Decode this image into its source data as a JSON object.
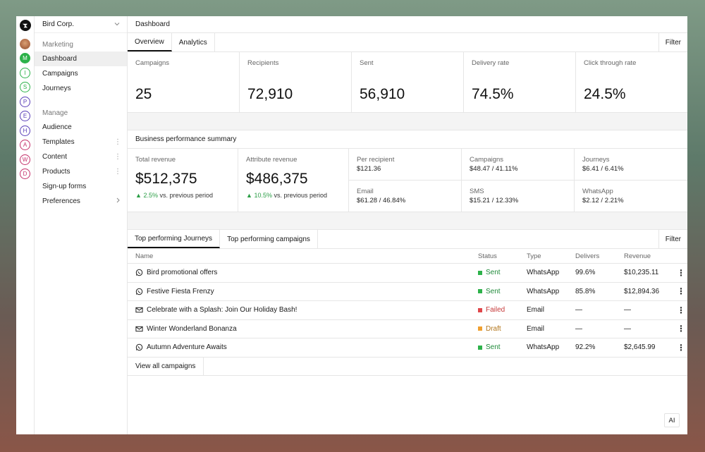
{
  "org": {
    "name": "Bird Corp."
  },
  "rail": {
    "workspaces": [
      {
        "letter": "",
        "kind": "photo",
        "color": "#b87550"
      },
      {
        "letter": "M",
        "kind": "filled",
        "color": "#2db24a"
      },
      {
        "letter": "I",
        "kind": "outline",
        "color": "#2db24a"
      },
      {
        "letter": "S",
        "kind": "outline",
        "color": "#2db24a"
      },
      {
        "letter": "P",
        "kind": "outline",
        "color": "#5a3fb8"
      },
      {
        "letter": "E",
        "kind": "outline",
        "color": "#5a3fb8"
      },
      {
        "letter": "H",
        "kind": "outline",
        "color": "#5a3fb8"
      },
      {
        "letter": "A",
        "kind": "outline",
        "color": "#c4306a"
      },
      {
        "letter": "W",
        "kind": "outline",
        "color": "#c4306a"
      },
      {
        "letter": "D",
        "kind": "outline",
        "color": "#c4306a"
      }
    ]
  },
  "sidebar": {
    "marketing_label": "Marketing",
    "marketing_items": [
      "Dashboard",
      "Campaigns",
      "Journeys"
    ],
    "manage_label": "Manage",
    "manage_items": [
      "Audience",
      "Templates",
      "Content",
      "Products",
      "Sign-up forms",
      "Preferences"
    ]
  },
  "header": {
    "title": "Dashboard"
  },
  "tabs": {
    "overview": "Overview",
    "analytics": "Analytics",
    "filter": "Filter"
  },
  "stats": [
    {
      "label": "Campaigns",
      "value": "25"
    },
    {
      "label": "Recipients",
      "value": "72,910"
    },
    {
      "label": "Sent",
      "value": "56,910"
    },
    {
      "label": "Delivery rate",
      "value": "74.5%"
    },
    {
      "label": "Click through rate",
      "value": "24.5%"
    }
  ],
  "performance": {
    "title": "Business performance summary",
    "total_revenue": {
      "label": "Total revenue",
      "value": "$512,375",
      "delta": "2.5%",
      "suffix": "vs. previous period"
    },
    "attribute_revenue": {
      "label": "Attribute revenue",
      "value": "$486,375",
      "delta": "10.5%",
      "suffix": "vs. previous period"
    },
    "breakdown": [
      {
        "label": "Per recipient",
        "value": "$121.36"
      },
      {
        "label": "Campaigns",
        "value": "$48.47 / 41.11%"
      },
      {
        "label": "Journeys",
        "value": "$6.41 / 6.41%"
      },
      {
        "label": "Email",
        "value": "$61.28 / 46.84%"
      },
      {
        "label": "SMS",
        "value": "$15.21 / 12.33%"
      },
      {
        "label": "WhatsApp",
        "value": "$2.12 / 2.21%"
      }
    ]
  },
  "top": {
    "tab_journeys": "Top performing Journeys",
    "tab_campaigns": "Top performing campaigns",
    "filter": "Filter",
    "columns": {
      "name": "Name",
      "status": "Status",
      "type": "Type",
      "delivers": "Delivers",
      "revenue": "Revenue"
    },
    "rows": [
      {
        "name": "Bird promotional offers",
        "channel_icon": "whatsapp-icon",
        "status": "Sent",
        "type": "WhatsApp",
        "delivers": "99.6%",
        "revenue": "$10,235.11"
      },
      {
        "name": "Festive Fiesta Frenzy",
        "channel_icon": "whatsapp-icon",
        "status": "Sent",
        "type": "WhatsApp",
        "delivers": "85.8%",
        "revenue": "$12,894.36"
      },
      {
        "name": "Celebrate with a Splash: Join Our Holiday Bash!",
        "channel_icon": "mail-icon",
        "status": "Failed",
        "type": "Email",
        "delivers": "—",
        "revenue": "—"
      },
      {
        "name": "Winter Wonderland Bonanza",
        "channel_icon": "mail-icon",
        "status": "Draft",
        "type": "Email",
        "delivers": "—",
        "revenue": "—"
      },
      {
        "name": "Autumn Adventure Awaits",
        "channel_icon": "whatsapp-icon",
        "status": "Sent",
        "type": "WhatsApp",
        "delivers": "92.2%",
        "revenue": "$2,645.99"
      }
    ],
    "status_colors": {
      "Sent": "#2db24a",
      "Failed": "#e0464a",
      "Draft": "#f0a030"
    },
    "view_all": "View all campaigns"
  },
  "ai_button": "AI"
}
